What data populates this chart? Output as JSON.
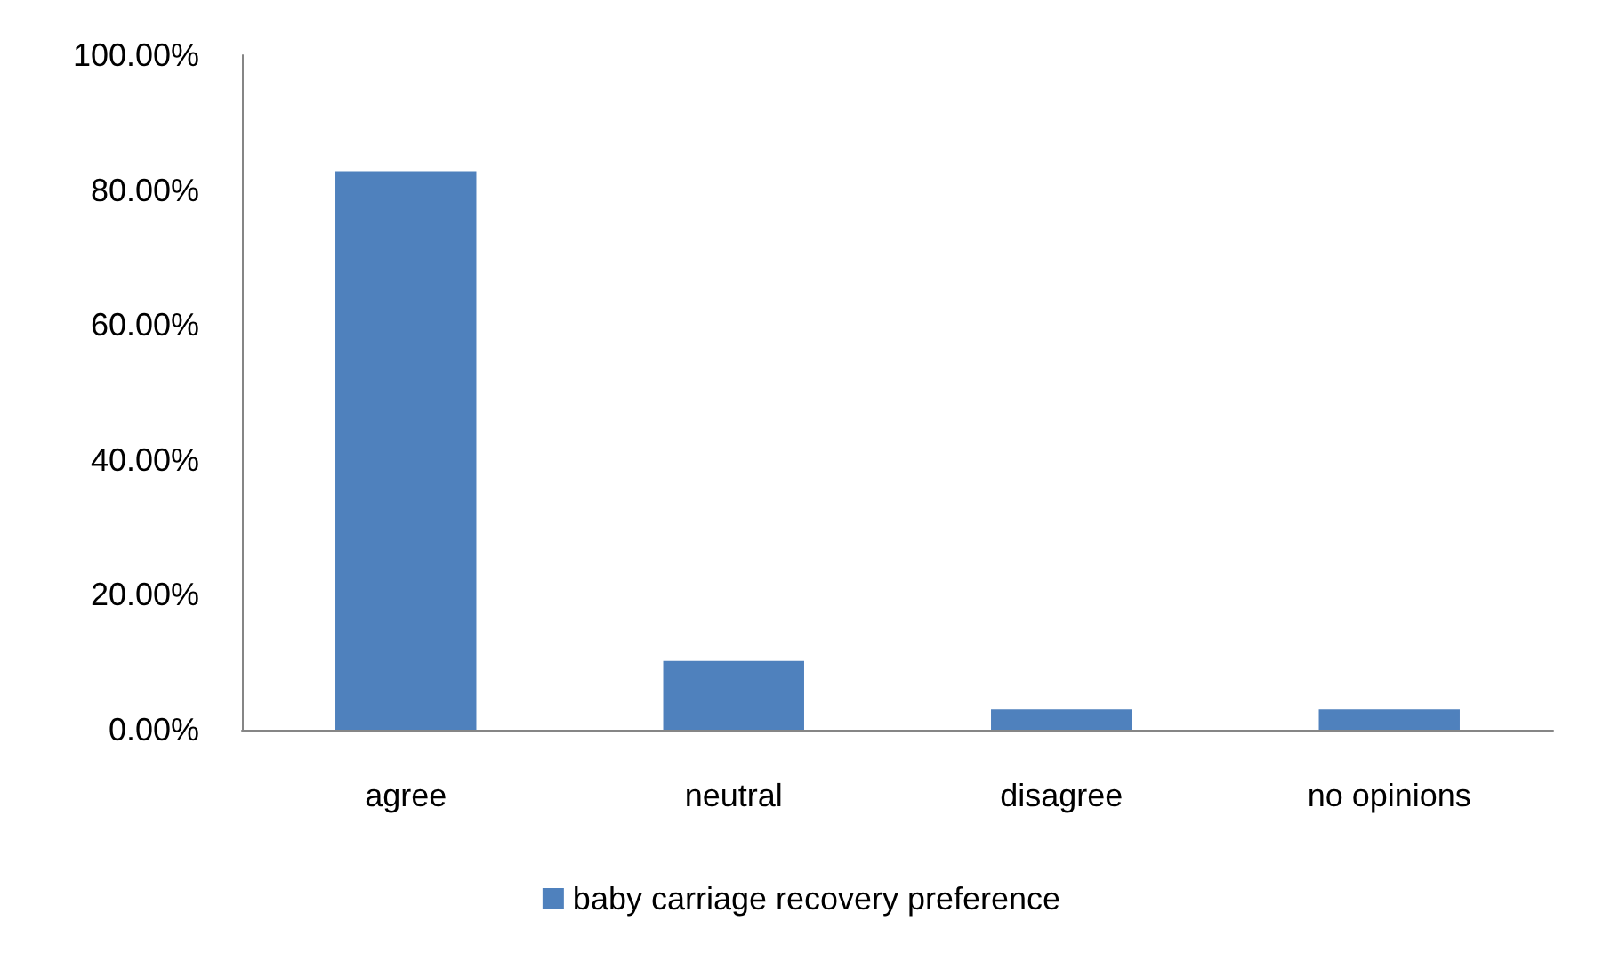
{
  "chart_data": {
    "type": "bar",
    "categories": [
      "agree",
      "neutral",
      "disagree",
      "no opinions"
    ],
    "series": [
      {
        "name": "baby carriage recovery preference",
        "color": "#4f81bd",
        "values": [
          82.8,
          10.2,
          3.0,
          3.0
        ]
      }
    ],
    "ylim": [
      0,
      100
    ],
    "yticks": [
      {
        "value": 0,
        "label": "0.00%"
      },
      {
        "value": 20,
        "label": "20.00%"
      },
      {
        "value": 40,
        "label": "40.00%"
      },
      {
        "value": 60,
        "label": "60.00%"
      },
      {
        "value": 80,
        "label": "80.00%"
      },
      {
        "value": 100,
        "label": "100.00%"
      }
    ],
    "grid": false,
    "legend": "bottom"
  }
}
